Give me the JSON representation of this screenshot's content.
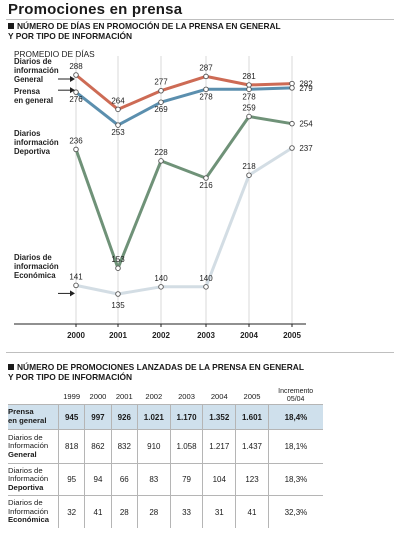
{
  "title": "Promociones en prensa",
  "chart_section_title": [
    "NÚMERO DE DÍAS EN PROMOCIÓN DE LA PRENSA EN GENERAL",
    "Y POR TIPO DE INFORMACIÓN"
  ],
  "chart_data": {
    "type": "line",
    "ylabel": "PROMEDIO DE DÍAS",
    "x": [
      "2000",
      "2001",
      "2002",
      "2003",
      "2004",
      "2005"
    ],
    "series": [
      {
        "name": [
          "Diarios de",
          "información",
          "General"
        ],
        "values": [
          288,
          264,
          277,
          287,
          281,
          282
        ],
        "color": "#cd6b55"
      },
      {
        "name": [
          "Prensa",
          "en general"
        ],
        "values": [
          276,
          253,
          269,
          278,
          278,
          279
        ],
        "color": "#5b8fae"
      },
      {
        "name": [
          "Diarios",
          "información",
          "Deportiva"
        ],
        "values": [
          236,
          153,
          228,
          216,
          259,
          254
        ],
        "color": "#6f9278"
      },
      {
        "name": [
          "Diarios de",
          "información",
          "Económica"
        ],
        "values": [
          141,
          135,
          140,
          140,
          218,
          237
        ],
        "color": "#d3dde4"
      }
    ]
  },
  "table_section_title": [
    "NÚMERO DE PROMOCIONES LANZADAS DE LA PRENSA EN GENERAL",
    "Y POR TIPO DE INFORMACIÓN"
  ],
  "table": {
    "years": [
      "1999",
      "2000",
      "2001",
      "2002",
      "2003",
      "2004",
      "2005"
    ],
    "increment_header": [
      "Incremento",
      "05/04"
    ],
    "rows": [
      {
        "label": [
          "Prensa",
          "en general"
        ],
        "values": [
          "945",
          "997",
          "926",
          "1.021",
          "1.170",
          "1.352",
          "1.601"
        ],
        "inc": "18,4%"
      },
      {
        "label": [
          "Diarios de",
          "Información",
          "General"
        ],
        "values": [
          "818",
          "862",
          "832",
          "910",
          "1.058",
          "1.217",
          "1.437"
        ],
        "inc": "18,1%"
      },
      {
        "label": [
          "Diarios de",
          "Información",
          "Deportiva"
        ],
        "values": [
          "95",
          "94",
          "66",
          "83",
          "79",
          "104",
          "123"
        ],
        "inc": "18,3%"
      },
      {
        "label": [
          "Diarios de",
          "Información",
          "Económica"
        ],
        "values": [
          "32",
          "41",
          "28",
          "28",
          "33",
          "31",
          "41"
        ],
        "inc": "32,3%"
      }
    ]
  }
}
